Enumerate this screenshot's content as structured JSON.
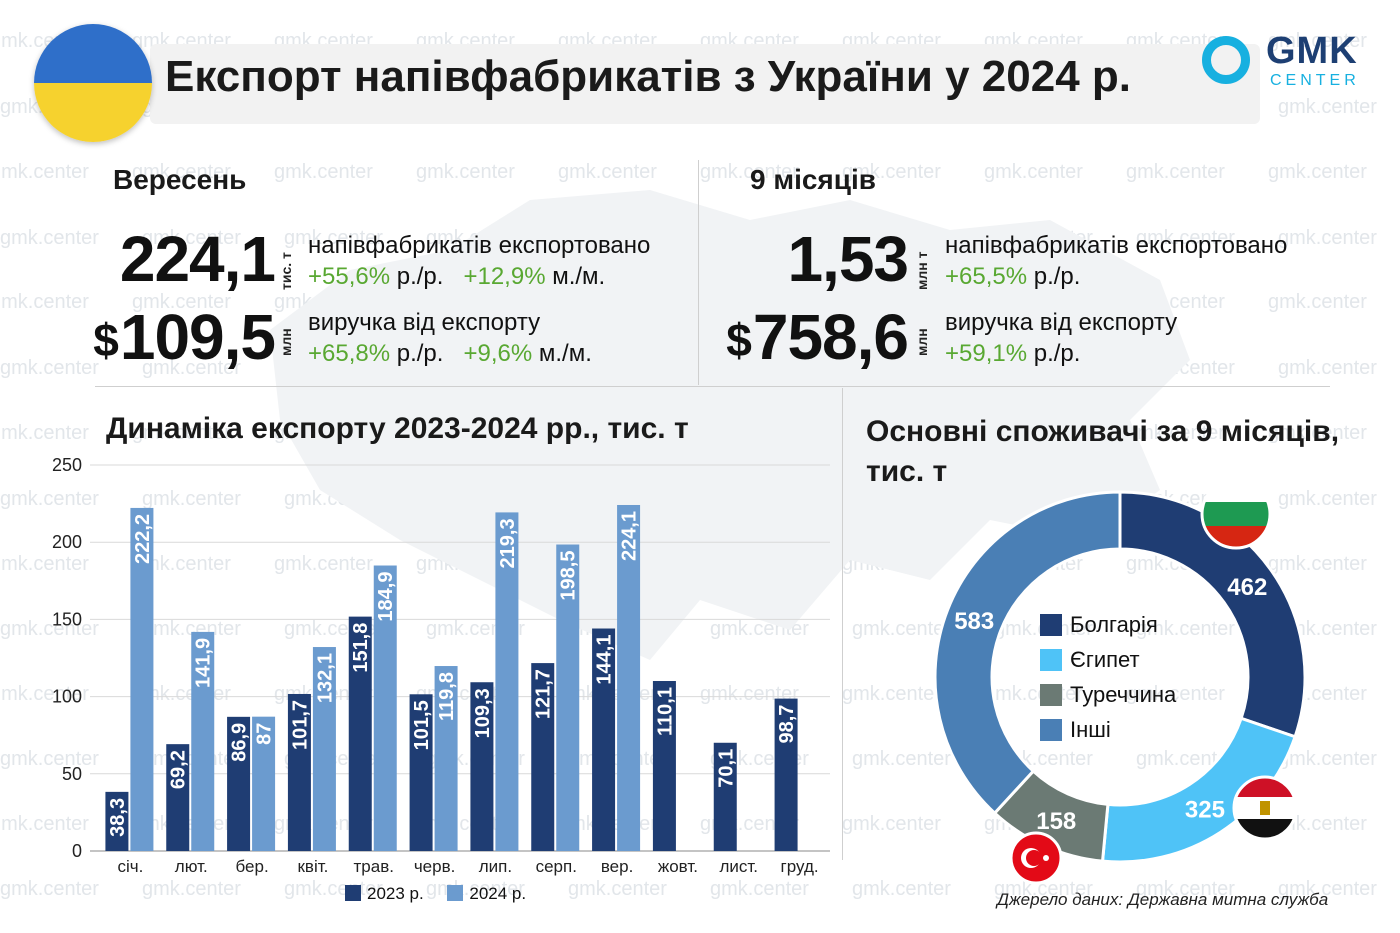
{
  "header": {
    "title": "Експорт напівфабрикатів з України у 2024 р.",
    "logo_top": "GMK",
    "logo_bottom": "CENTER"
  },
  "watermark": "gmk.center",
  "september": {
    "heading": "Вересень",
    "volume_value": "224,1",
    "volume_unit": "тис. т",
    "volume_desc": "напівфабрикатів експортовано",
    "volume_yoy": "+55,6%",
    "yoy_suffix": "р./р.",
    "volume_mom": "+12,9%",
    "mom_suffix": "м./м.",
    "revenue_currency": "$",
    "revenue_value": "109,5",
    "revenue_unit": "млн",
    "revenue_desc": "виручка від експорту",
    "revenue_yoy": "+65,8%",
    "revenue_mom": "+9,6%"
  },
  "nine_months": {
    "heading": "9 місяців",
    "volume_value": "1,53",
    "volume_unit": "млн т",
    "volume_desc": "напівфабрикатів експортовано",
    "volume_yoy": "+65,5%",
    "yoy_suffix": "р./р.",
    "revenue_currency": "$",
    "revenue_value": "758,6",
    "revenue_unit": "млн",
    "revenue_desc": "виручка від експорту",
    "revenue_yoy": "+59,1%"
  },
  "colors": {
    "series_2023": "#1f3d73",
    "series_2024": "#6b9bcf",
    "green": "#59a832",
    "bulgaria": "#1f3d73",
    "egypt": "#4fc3f7",
    "turkey": "#6b7a74",
    "other": "#4a7fb5"
  },
  "chart_data": [
    {
      "type": "bar",
      "title": "Динаміка експорту 2023-2024 рр., тис. т",
      "categories": [
        "січ.",
        "лют.",
        "бер.",
        "квіт.",
        "трав.",
        "черв.",
        "лип.",
        "серп.",
        "вер.",
        "жовт.",
        "лист.",
        "груд."
      ],
      "series": [
        {
          "name": "2023 р.",
          "values": [
            38.3,
            69.2,
            86.9,
            101.7,
            151.8,
            101.5,
            109.3,
            121.7,
            144.1,
            110.1,
            70.1,
            98.7
          ],
          "labels": [
            "38,3",
            "69,2",
            "86,9",
            "101,7",
            "151,8",
            "101,5",
            "109,3",
            "121,7",
            "144,1",
            "110,1",
            "70,1",
            "98,7"
          ]
        },
        {
          "name": "2024 р.",
          "values": [
            222.2,
            141.9,
            87,
            132.1,
            184.9,
            119.8,
            219.3,
            198.5,
            224.1,
            null,
            null,
            null
          ],
          "labels": [
            "222,2",
            "141,9",
            "87",
            "132,1",
            "184,9",
            "119,8",
            "219,3",
            "198,5",
            "224,1",
            "",
            "",
            ""
          ]
        }
      ],
      "yticks": [
        "0",
        "50",
        "100",
        "150",
        "200",
        "250"
      ],
      "ylim": [
        0,
        250
      ],
      "legend": "bottom"
    },
    {
      "type": "pie",
      "title": "Основні споживачі за 9 місяців, тис. т",
      "categories": [
        "Болгарія",
        "Єгипет",
        "Туреччина",
        "Інші"
      ],
      "values": [
        462,
        325,
        158,
        583
      ],
      "labels": [
        "462",
        "325",
        "158",
        "583"
      ],
      "legend": "center"
    }
  ],
  "source": "Джерело даних: Державна митна служба"
}
